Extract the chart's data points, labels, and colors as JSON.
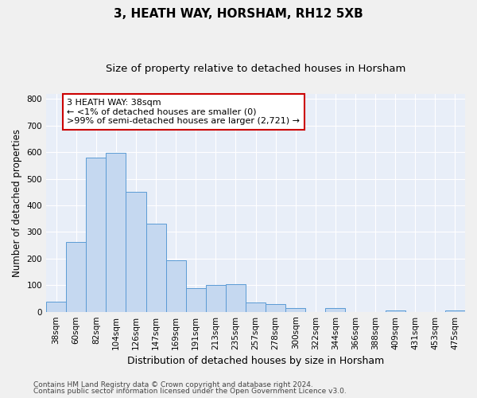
{
  "title": "3, HEATH WAY, HORSHAM, RH12 5XB",
  "subtitle": "Size of property relative to detached houses in Horsham",
  "xlabel": "Distribution of detached houses by size in Horsham",
  "ylabel": "Number of detached properties",
  "bar_color": "#c5d8f0",
  "bar_edge_color": "#5b9bd5",
  "background_color": "#e8eef8",
  "fig_background": "#f0f0f0",
  "categories": [
    "38sqm",
    "60sqm",
    "82sqm",
    "104sqm",
    "126sqm",
    "147sqm",
    "169sqm",
    "191sqm",
    "213sqm",
    "235sqm",
    "257sqm",
    "278sqm",
    "300sqm",
    "322sqm",
    "344sqm",
    "366sqm",
    "388sqm",
    "409sqm",
    "431sqm",
    "453sqm",
    "475sqm"
  ],
  "values": [
    38,
    262,
    580,
    598,
    450,
    330,
    193,
    88,
    100,
    103,
    35,
    30,
    13,
    0,
    13,
    0,
    0,
    5,
    0,
    0,
    5
  ],
  "ylim": [
    0,
    820
  ],
  "yticks": [
    0,
    100,
    200,
    300,
    400,
    500,
    600,
    700,
    800
  ],
  "annotation_line1": "3 HEATH WAY: 38sqm",
  "annotation_line2": "← <1% of detached houses are smaller (0)",
  "annotation_line3": ">99% of semi-detached houses are larger (2,721) →",
  "annotation_box_color": "#ffffff",
  "annotation_box_edge": "#cc0000",
  "footnote1": "Contains HM Land Registry data © Crown copyright and database right 2024.",
  "footnote2": "Contains public sector information licensed under the Open Government Licence v3.0.",
  "grid_color": "#ffffff",
  "title_fontsize": 11,
  "subtitle_fontsize": 9.5,
  "xlabel_fontsize": 9,
  "ylabel_fontsize": 8.5,
  "tick_fontsize": 7.5,
  "annotation_fontsize": 8,
  "footnote_fontsize": 6.5
}
